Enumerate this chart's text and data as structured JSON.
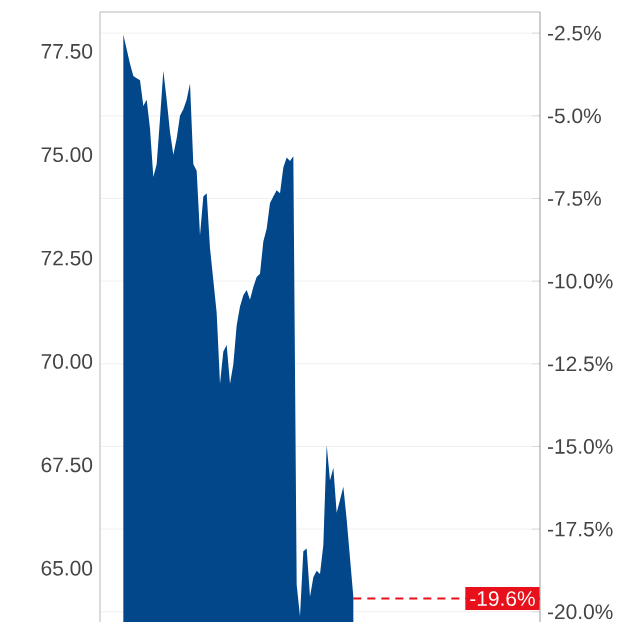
{
  "chart_data": {
    "type": "area",
    "color": "#02478a",
    "categories": [
      null,
      null,
      null,
      null,
      null,
      null,
      null,
      null,
      null,
      null,
      null,
      null,
      null,
      null,
      null,
      null,
      null,
      null,
      null,
      null,
      null,
      null,
      null,
      null,
      null,
      null,
      null,
      null,
      null,
      null,
      null,
      null,
      null,
      null,
      null,
      null,
      null,
      null,
      null,
      null,
      null,
      null,
      null,
      null,
      null,
      null,
      null,
      null,
      null,
      null,
      null,
      null,
      null,
      null,
      null,
      null,
      null,
      null,
      null,
      null,
      null,
      null,
      null,
      null,
      null,
      null,
      null,
      null,
      null,
      null,
      null,
      null,
      null,
      null,
      null,
      null,
      null,
      null,
      null,
      null,
      null,
      null,
      null,
      null,
      null,
      null,
      null,
      null,
      null,
      null,
      null,
      null,
      null,
      null,
      null,
      null,
      null,
      null,
      null,
      null,
      null,
      null,
      null,
      null,
      null,
      null,
      null,
      null,
      null,
      null,
      null,
      null,
      null,
      null,
      null,
      null,
      null,
      null,
      null,
      null,
      null,
      null,
      null,
      null,
      null,
      null,
      null,
      null,
      null,
      null,
      null,
      null,
      null
    ],
    "values": [
      null,
      null,
      null,
      null,
      null,
      null,
      null,
      77.9,
      77.55,
      77.2,
      76.9,
      76.85,
      76.8,
      76.18,
      76.33,
      75.63,
      74.46,
      74.77,
      75.86,
      77.03,
      76.33,
      75.55,
      75.0,
      75.39,
      75.94,
      76.1,
      76.33,
      76.72,
      74.77,
      74.61,
      73.05,
      73.99,
      74.07,
      72.74,
      71.96,
      71.18,
      69.46,
      70.24,
      70.4,
      69.46,
      69.93,
      70.87,
      71.33,
      71.6,
      71.73,
      71.49,
      71.8,
      72.04,
      72.12,
      72.9,
      73.21,
      73.83,
      73.99,
      74.14,
      74.07,
      74.69,
      74.93,
      74.85,
      74.96,
      64.6,
      63.84,
      65.41,
      65.48,
      64.31,
      64.78,
      64.94,
      64.86,
      65.56,
      67.98,
      67.12,
      67.43,
      66.34,
      66.65,
      66.97,
      66.18,
      65.25,
      64.31,
      null,
      null,
      null,
      null,
      null,
      null,
      null,
      null,
      null,
      null,
      null,
      null,
      null,
      null,
      null,
      null,
      null,
      null,
      null,
      null,
      null,
      null,
      null,
      null,
      null,
      null,
      null,
      null,
      null,
      null,
      null,
      null,
      null,
      null,
      null,
      null,
      null,
      null,
      null,
      null,
      null,
      null,
      null,
      null,
      null,
      null,
      null,
      null,
      null,
      null,
      null,
      null,
      null,
      null,
      null,
      null
    ],
    "ylim": [
      63.7,
      78.45
    ],
    "yticks": [
      {
        "value": 65,
        "label": "65.00"
      },
      {
        "value": 67.5,
        "label": "67.50"
      },
      {
        "value": 70,
        "label": "70.00"
      },
      {
        "value": 72.5,
        "label": "72.50"
      },
      {
        "value": 75,
        "label": "75.00"
      },
      {
        "value": 77.5,
        "label": "77.50"
      }
    ],
    "y2lim": [
      -20.31,
      -1.86
    ],
    "y2ticks": [
      {
        "value": -20,
        "label": "-20.0%"
      },
      {
        "value": -17.5,
        "label": "-17.5%"
      },
      {
        "value": -15,
        "label": "-15.0%"
      },
      {
        "value": -12.5,
        "label": "-12.5%"
      },
      {
        "value": -10,
        "label": "-10.0%"
      },
      {
        "value": -7.5,
        "label": "-7.5%"
      },
      {
        "value": -5,
        "label": "-5.0%"
      },
      {
        "value": -2.5,
        "label": "-2.5%"
      }
    ],
    "grid": "y",
    "ref_lines": [
      {
        "axis": "y2",
        "value": -19.6,
        "label": "-19.6%",
        "color": "#e8101a",
        "line_style": "dashed"
      }
    ]
  }
}
